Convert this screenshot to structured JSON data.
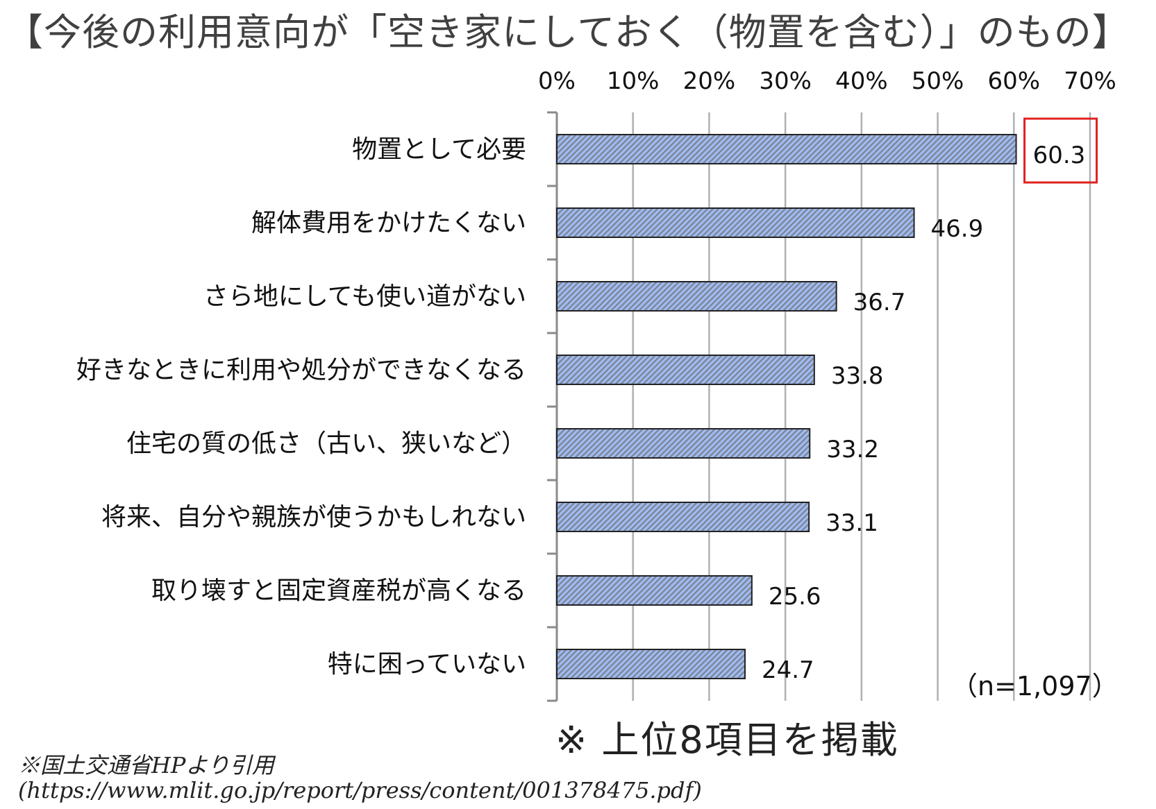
{
  "chart_data": {
    "type": "bar",
    "orientation": "horizontal",
    "title": "【今後の利用意向が「空き家にしておく（物置を含む）」のもの】",
    "categories": [
      "物置として必要",
      "解体費用をかけたくない",
      "さら地にしても使い道がない",
      "好きなときに利用や処分ができなくなる",
      "住宅の質の低さ（古い、狭いなど）",
      "将来、自分や親族が使うかもしれない",
      "取り壊すと固定資産税が高くなる",
      "特に困っていない"
    ],
    "values": [
      60.3,
      46.9,
      36.7,
      33.8,
      33.2,
      33.1,
      25.6,
      24.7
    ],
    "value_labels": [
      "60.3",
      "46.9",
      "36.7",
      "33.8",
      "33.2",
      "33.1",
      "25.6",
      "24.7"
    ],
    "xlim": [
      0,
      70
    ],
    "x_ticks": [
      "0%",
      "10%",
      "20%",
      "30%",
      "40%",
      "50%",
      "60%",
      "70%"
    ],
    "x_axis_position": "top",
    "grid": true,
    "highlighted_index": 0,
    "highlight_color": "#e02020",
    "bar_color": "#9db9f0",
    "bar_hatch": "diagonal",
    "sample_note": "（n=1,097）"
  },
  "footnote": "※ 上位8項目を掲載",
  "source_line1": "※国土交通省HPより引用",
  "source_line2": "(https://www.mlit.go.jp/report/press/content/001378475.pdf)"
}
